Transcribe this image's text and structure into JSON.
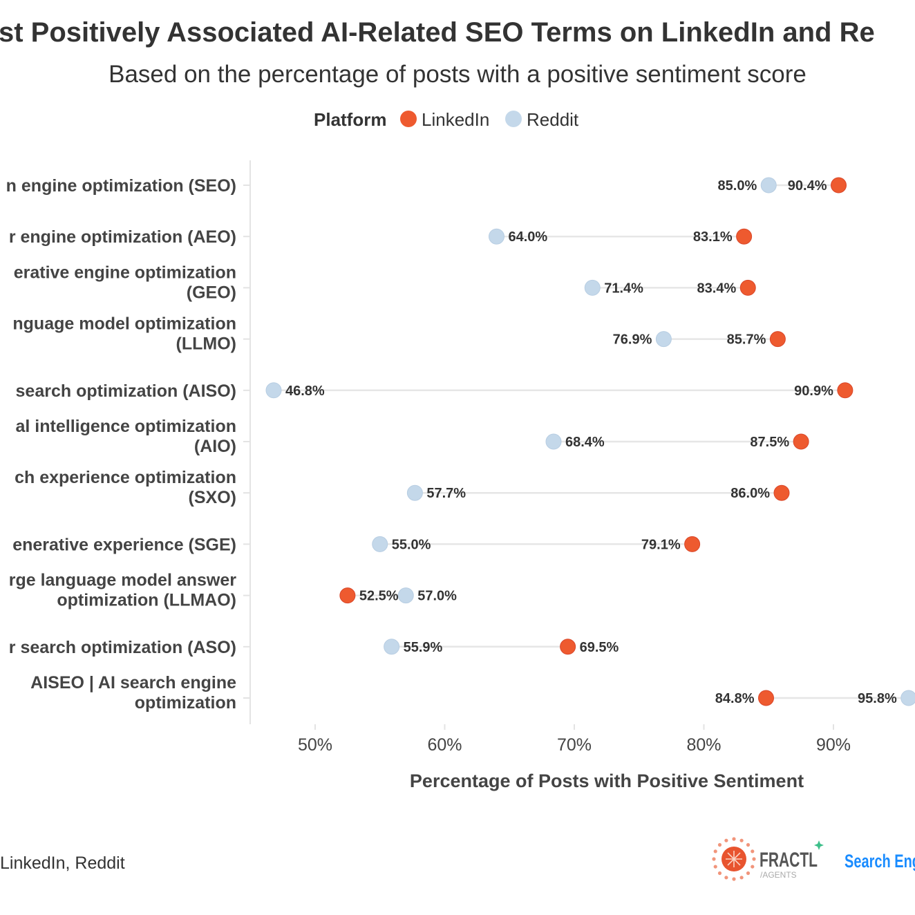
{
  "chart_data": {
    "type": "dot-plot",
    "title": "st Positively Associated AI-Related SEO Terms on LinkedIn and Re",
    "subtitle": "Based on the percentage of posts with a positive sentiment score",
    "legend": {
      "title": "Platform",
      "placement": "top-center",
      "entries": [
        {
          "name": "LinkedIn",
          "color": "#ee5a2f"
        },
        {
          "name": "Reddit",
          "color": "#c4d8ea"
        }
      ]
    },
    "xlabel": "Percentage of Posts with Positive Sentiment",
    "xlim": [
      45,
      97
    ],
    "xticks": [
      50,
      60,
      70,
      80,
      90
    ],
    "xtick_labels": [
      "50%",
      "60%",
      "70%",
      "80%",
      "90%"
    ],
    "grid": false,
    "categories": [
      [
        "n engine optimization (SEO)"
      ],
      [
        "r engine optimization (AEO)"
      ],
      [
        "erative engine optimization",
        "(GEO)"
      ],
      [
        "nguage model optimization",
        "(LLMO)"
      ],
      [
        "search optimization (AISO)"
      ],
      [
        "al intelligence optimization",
        "(AIO)"
      ],
      [
        "ch experience optimization",
        "(SXO)"
      ],
      [
        "enerative experience (SGE)"
      ],
      [
        "rge language model answer",
        "optimization (LLMAO)"
      ],
      [
        "r search optimization (ASO)"
      ],
      [
        "AISEO | AI search engine",
        "optimization"
      ]
    ],
    "series": [
      {
        "name": "LinkedIn",
        "values": [
          90.4,
          83.1,
          83.4,
          85.7,
          90.9,
          87.5,
          86.0,
          79.1,
          52.5,
          69.5,
          84.8
        ]
      },
      {
        "name": "Reddit",
        "values": [
          85.0,
          64.0,
          71.4,
          76.9,
          46.8,
          68.4,
          57.7,
          55.0,
          57.0,
          55.9,
          95.8
        ]
      }
    ]
  },
  "source": "LinkedIn, Reddit",
  "logos": {
    "fractl": "FRACTL",
    "fractl_sub": "/AGENTS",
    "sej": "Search Eng"
  }
}
